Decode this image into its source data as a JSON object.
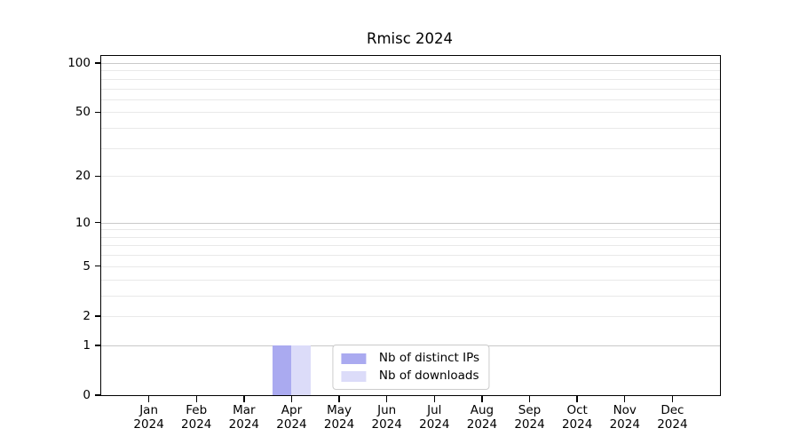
{
  "title": "Rmisc 2024",
  "chart_data": {
    "type": "bar",
    "title": "Rmisc 2024",
    "categories": [
      "Jan",
      "Feb",
      "Mar",
      "Apr",
      "May",
      "Jun",
      "Jul",
      "Aug",
      "Sep",
      "Oct",
      "Nov",
      "Dec"
    ],
    "x_year_label": "2024",
    "series": [
      {
        "name": "Nb of distinct IPs",
        "color": "#aaaaf0",
        "values": [
          0,
          0,
          0,
          1,
          0,
          0,
          0,
          0,
          0,
          0,
          0,
          0
        ]
      },
      {
        "name": "Nb of downloads",
        "color": "#dcdcf9",
        "values": [
          0,
          0,
          0,
          1,
          0,
          0,
          0,
          0,
          0,
          0,
          0,
          0
        ]
      }
    ],
    "y_axis": {
      "transform": "log1p",
      "min": 0,
      "max": 100,
      "labeled_ticks": [
        0,
        1,
        2,
        5,
        10,
        20,
        50,
        100
      ],
      "major_gridlines": [
        1,
        10,
        100
      ],
      "minor_gridlines": [
        2,
        3,
        4,
        5,
        6,
        7,
        8,
        9,
        20,
        30,
        40,
        50,
        60,
        70,
        80,
        90
      ]
    },
    "legend": {
      "location": "lower center",
      "entries": [
        "Nb of distinct IPs",
        "Nb of downloads"
      ]
    },
    "grid": "horizontal",
    "colors": {
      "major_grid": "#c9c9c9",
      "minor_grid": "#e9e9e9",
      "axis": "#000000",
      "text": "#000000",
      "background": "#ffffff",
      "legend_border": "#cccccc",
      "legend_bg": "#ffffff"
    }
  }
}
